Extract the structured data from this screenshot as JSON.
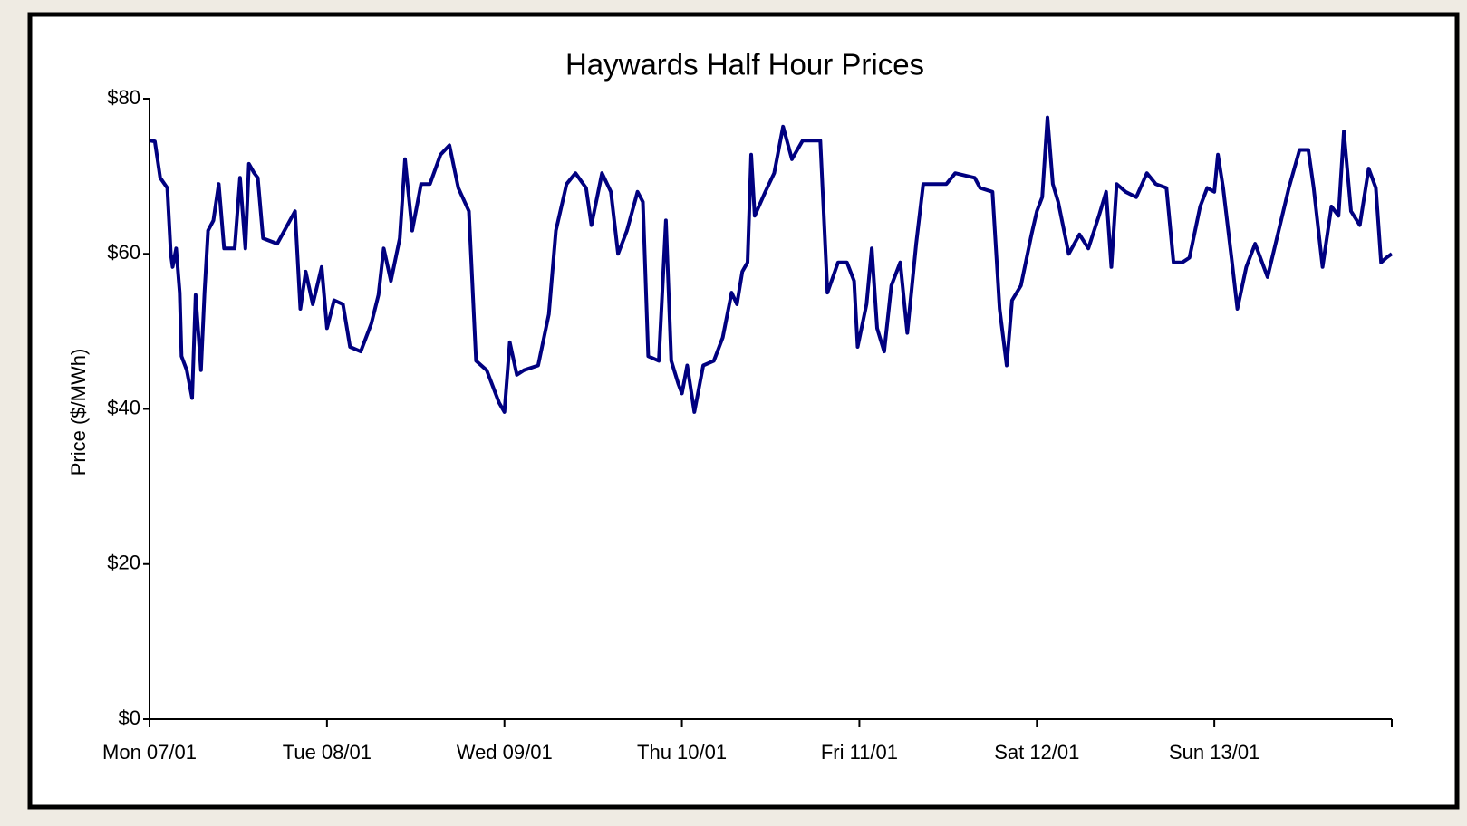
{
  "chart_data": {
    "type": "line",
    "title": "Haywards Half Hour Prices",
    "y_label": "Price ($/MWh)",
    "xlim": [
      0,
      7
    ],
    "xticks": [
      {
        "value": 0,
        "label": "Mon 07/01"
      },
      {
        "value": 1,
        "label": "Tue 08/01"
      },
      {
        "value": 2,
        "label": "Wed 09/01"
      },
      {
        "value": 3,
        "label": "Thu 10/01"
      },
      {
        "value": 4,
        "label": "Fri 11/01"
      },
      {
        "value": 5,
        "label": "Sat 12/01"
      },
      {
        "value": 6,
        "label": "Sun 13/01"
      }
    ],
    "ylim": [
      0,
      80
    ],
    "yticks": [
      {
        "value": 0,
        "label": "$0"
      },
      {
        "value": 20,
        "label": "$20"
      },
      {
        "value": 40,
        "label": "$40"
      },
      {
        "value": 60,
        "label": "$60"
      },
      {
        "value": 80,
        "label": "$80"
      }
    ],
    "grid": false,
    "x": [
      0,
      0.03,
      0.06,
      0.1,
      0.12,
      0.13,
      0.15,
      0.17,
      0.18,
      0.21,
      0.24,
      0.26,
      0.29,
      0.31,
      0.33,
      0.36,
      0.39,
      0.42,
      0.48,
      0.51,
      0.54,
      0.56,
      0.59,
      0.61,
      0.64,
      0.72,
      0.82,
      0.85,
      0.88,
      0.92,
      0.97,
      1.0,
      1.04,
      1.09,
      1.13,
      1.19,
      1.25,
      1.29,
      1.32,
      1.36,
      1.41,
      1.44,
      1.48,
      1.53,
      1.58,
      1.64,
      1.69,
      1.74,
      1.8,
      1.84,
      1.9,
      1.97,
      2.0,
      2.03,
      2.07,
      2.11,
      2.19,
      2.25,
      2.29,
      2.35,
      2.4,
      2.46,
      2.49,
      2.55,
      2.6,
      2.64,
      2.69,
      2.75,
      2.78,
      2.81,
      2.87,
      2.91,
      2.94,
      2.98,
      3.0,
      3.03,
      3.07,
      3.12,
      3.18,
      3.23,
      3.28,
      3.31,
      3.34,
      3.37,
      3.39,
      3.41,
      3.47,
      3.52,
      3.57,
      3.62,
      3.68,
      3.73,
      3.78,
      3.82,
      3.88,
      3.93,
      3.97,
      3.99,
      4.04,
      4.07,
      4.1,
      4.14,
      4.18,
      4.23,
      4.27,
      4.32,
      4.36,
      4.41,
      4.49,
      4.54,
      4.65,
      4.68,
      4.75,
      4.79,
      4.83,
      4.86,
      4.91,
      4.97,
      5.0,
      5.03,
      5.06,
      5.09,
      5.12,
      5.18,
      5.24,
      5.29,
      5.35,
      5.39,
      5.42,
      5.45,
      5.5,
      5.56,
      5.62,
      5.67,
      5.73,
      5.77,
      5.82,
      5.86,
      5.92,
      5.96,
      6.0,
      6.02,
      6.05,
      6.1,
      6.13,
      6.18,
      6.23,
      6.3,
      6.37,
      6.42,
      6.48,
      6.53,
      6.56,
      6.61,
      6.66,
      6.7,
      6.73,
      6.77,
      6.82,
      6.87,
      6.91,
      6.94,
      6.97,
      7.0
    ],
    "series": [
      {
        "color": "#000080",
        "values": [
          74.6,
          74.5,
          69.8,
          68.5,
          60,
          58.3,
          60.7,
          55,
          46.8,
          45,
          41.4,
          54.7,
          45,
          55,
          63,
          64.3,
          69,
          60.7,
          60.7,
          69.8,
          60.7,
          71.6,
          70.4,
          69.8,
          62,
          61.3,
          65.5,
          52.9,
          57.7,
          53.5,
          58.3,
          50.4,
          54,
          53.5,
          48,
          47.4,
          51,
          54.7,
          60.7,
          56.5,
          62,
          72.2,
          63,
          69,
          69,
          72.8,
          74,
          68.5,
          65.5,
          46.2,
          45,
          40.8,
          39.6,
          48.6,
          44.4,
          45,
          45.6,
          52.2,
          63,
          69,
          70.4,
          68.5,
          63.7,
          70.4,
          68,
          60,
          63,
          68,
          66.7,
          46.8,
          46.2,
          64.3,
          46.2,
          43.2,
          42,
          45.6,
          39.6,
          45.6,
          46.2,
          49.2,
          55,
          53.5,
          57.7,
          58.9,
          72.8,
          64.9,
          68,
          70.4,
          76.4,
          72.2,
          74.6,
          74.6,
          74.6,
          55,
          58.9,
          58.9,
          56.5,
          48,
          53.5,
          60.7,
          50.4,
          47.4,
          55.9,
          58.9,
          49.8,
          61.3,
          69,
          69,
          69,
          70.4,
          69.8,
          68.5,
          68,
          52.9,
          45.6,
          54,
          55.9,
          62.5,
          65.5,
          67.3,
          77.6,
          69,
          66.7,
          60,
          62.5,
          60.7,
          64.9,
          68,
          58.3,
          69,
          68,
          67.3,
          70.4,
          69,
          68.5,
          58.9,
          58.9,
          59.5,
          66.1,
          68.5,
          68,
          72.8,
          68.5,
          58.9,
          52.9,
          58.3,
          61.3,
          57,
          63.7,
          68.5,
          73.4,
          73.4,
          68.5,
          58.3,
          66.1,
          64.9,
          75.8,
          65.5,
          63.7,
          71,
          68.5,
          58.9,
          59.5,
          60
        ]
      }
    ]
  }
}
